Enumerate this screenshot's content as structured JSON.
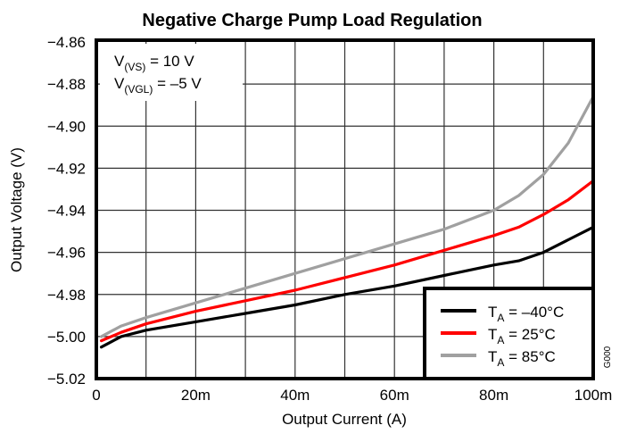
{
  "chart_data": {
    "type": "line",
    "title": "Negative Charge Pump Load Regulation",
    "xlabel": "Output Current (A)",
    "ylabel": "Output Voltage (V)",
    "xlim": [
      0,
      0.1
    ],
    "ylim": [
      -5.02,
      -4.86
    ],
    "x_ticks": [
      0,
      0.02,
      0.04,
      0.06,
      0.08,
      0.1
    ],
    "x_tick_labels": [
      "0",
      "20m",
      "40m",
      "60m",
      "80m",
      "100m"
    ],
    "x_minor_grid": [
      0.01,
      0.03,
      0.05,
      0.07,
      0.09
    ],
    "y_ticks": [
      -4.86,
      -4.88,
      -4.9,
      -4.92,
      -4.94,
      -4.96,
      -4.98,
      -5.0,
      -5.02
    ],
    "y_tick_labels": [
      "−4.86",
      "−4.88",
      "−4.90",
      "−4.92",
      "−4.94",
      "−4.96",
      "−4.98",
      "−5.00",
      "−5.02"
    ],
    "grid": true,
    "legend_position": "bottom-right",
    "annotations": {
      "line1": {
        "main": "V",
        "sub": "(VS)",
        "rest": " = 10 V"
      },
      "line2": {
        "main": "V",
        "sub": "(VGL)",
        "rest": " = –5 V"
      }
    },
    "figure_code": "G000",
    "x": [
      0.001,
      0.005,
      0.01,
      0.02,
      0.03,
      0.04,
      0.05,
      0.06,
      0.07,
      0.08,
      0.085,
      0.09,
      0.095,
      0.1
    ],
    "series": [
      {
        "name": "T_A = −40°C",
        "legend_main": "T",
        "legend_sub": "A",
        "legend_rest": " = –40°C",
        "color": "#000000",
        "values": [
          -5.005,
          -5.0,
          -4.997,
          -4.993,
          -4.989,
          -4.985,
          -4.98,
          -4.976,
          -4.971,
          -4.966,
          -4.964,
          -4.96,
          -4.954,
          -4.948
        ]
      },
      {
        "name": "T_A = 25°C",
        "legend_main": "T",
        "legend_sub": "A",
        "legend_rest": " = 25°C",
        "color": "#ff0000",
        "values": [
          -5.002,
          -4.998,
          -4.994,
          -4.988,
          -4.983,
          -4.978,
          -4.972,
          -4.966,
          -4.959,
          -4.952,
          -4.948,
          -4.942,
          -4.935,
          -4.926
        ]
      },
      {
        "name": "T_A = 85°C",
        "legend_main": "T",
        "legend_sub": "A",
        "legend_rest": " = 85°C",
        "color": "#a0a0a0",
        "values": [
          -5.0,
          -4.995,
          -4.991,
          -4.984,
          -4.977,
          -4.97,
          -4.963,
          -4.956,
          -4.949,
          -4.94,
          -4.933,
          -4.923,
          -4.908,
          -4.886
        ]
      }
    ]
  }
}
